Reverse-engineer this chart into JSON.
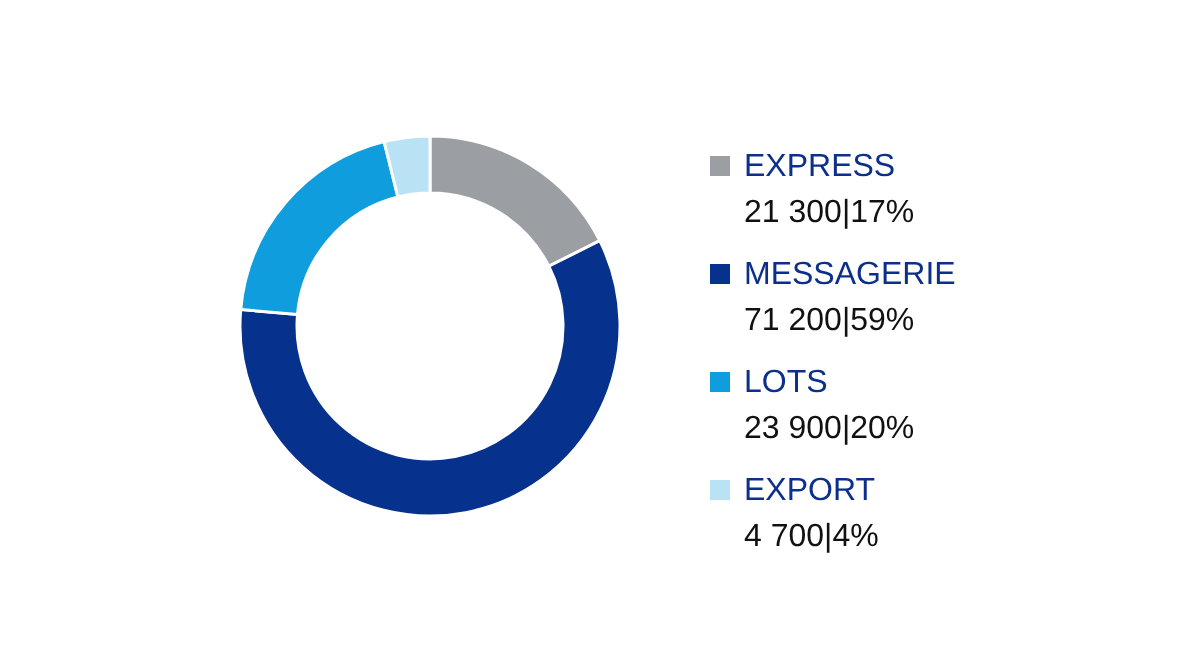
{
  "chart_data": {
    "type": "donut",
    "categories": [
      "EXPRESS",
      "MESSAGERIE",
      "LOTS",
      "EXPORT"
    ],
    "values": [
      21300,
      71200,
      23900,
      4700
    ],
    "colors": [
      "#9b9ea3",
      "#06318c",
      "#0f9ddd",
      "#b9e3f5"
    ],
    "value_labels": [
      "21 300|17%",
      "71 200|59%",
      "23 900|20%",
      "4 700|4%"
    ],
    "legend": "right"
  }
}
